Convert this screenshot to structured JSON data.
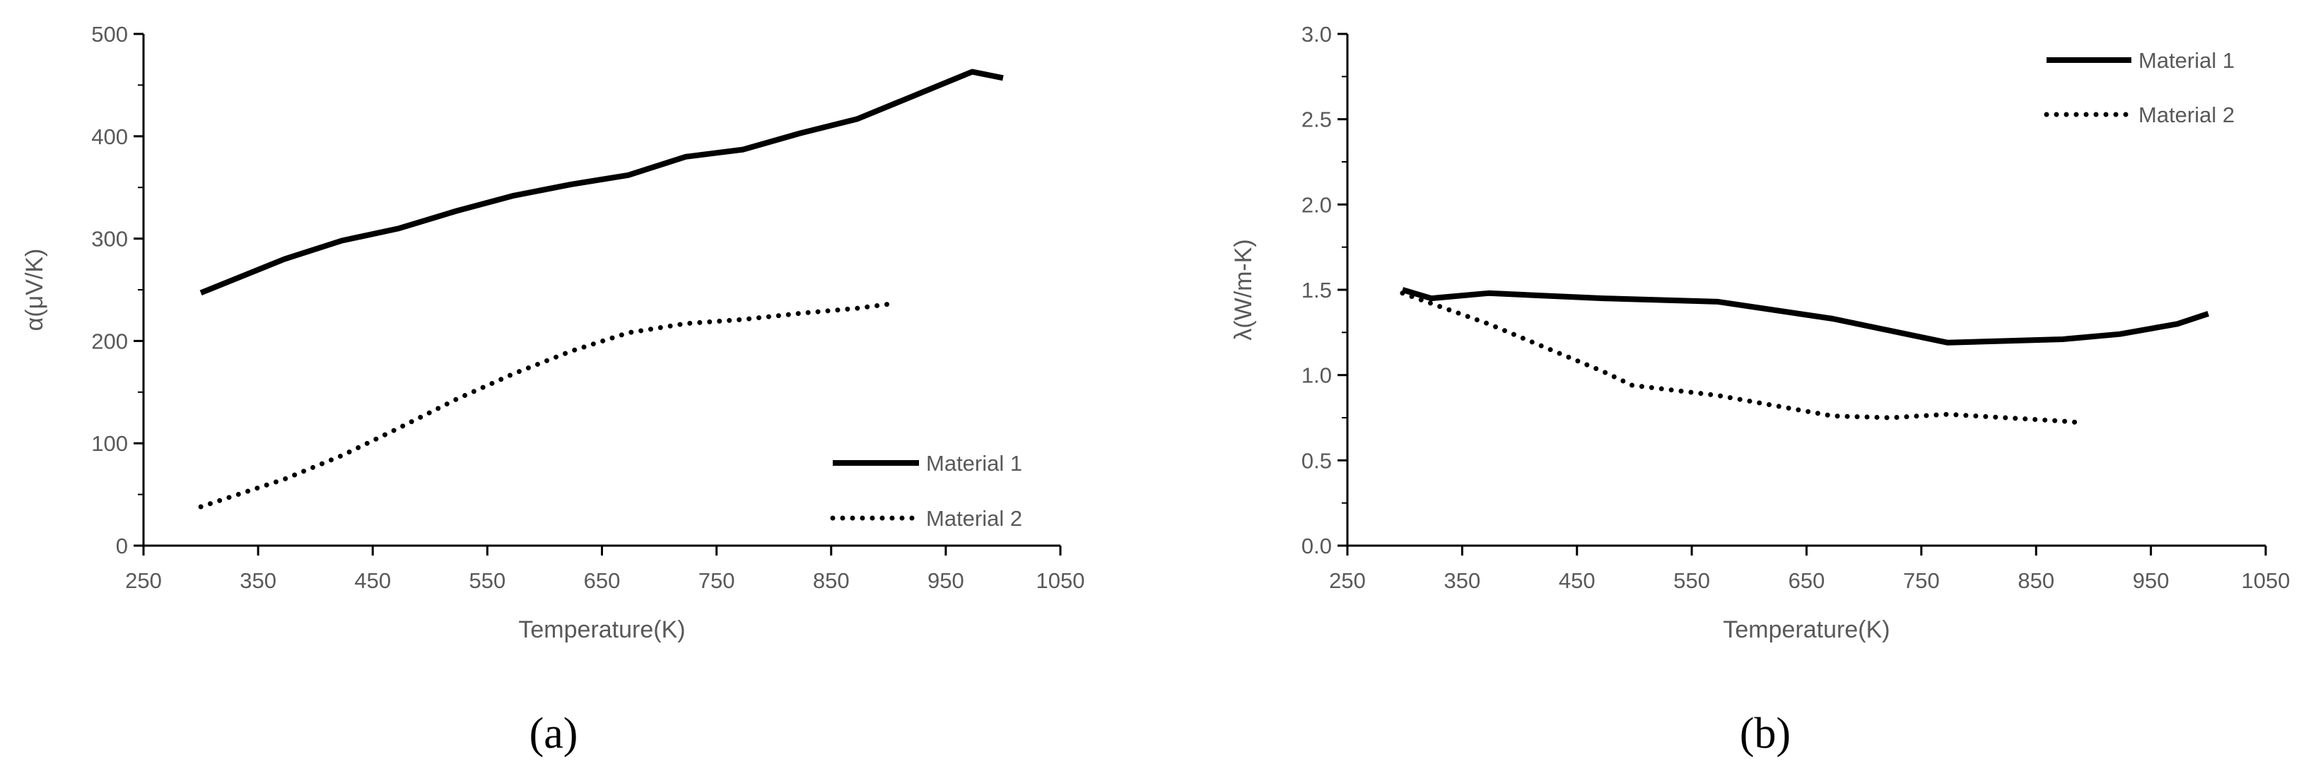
{
  "chart_data": [
    {
      "type": "line",
      "caption": "(a)",
      "xlabel": "Temperature(K)",
      "ylabel": "α(μV/K)",
      "xlim": [
        250,
        1050
      ],
      "ylim": [
        0,
        500
      ],
      "xticks": [
        250,
        350,
        450,
        550,
        650,
        750,
        850,
        950,
        1050
      ],
      "yticks": [
        0,
        100,
        200,
        300,
        400,
        500
      ],
      "ytick_labels": [
        "0",
        "100",
        "200",
        "300",
        "400",
        "500"
      ],
      "grid": false,
      "legend_position": "bottom-right",
      "series": [
        {
          "name": "Material 1",
          "style": "solid",
          "x": [
            300,
            373,
            423,
            473,
            523,
            573,
            623,
            673,
            723,
            773,
            823,
            873,
            923,
            973,
            1000
          ],
          "y": [
            247,
            280,
            298,
            310,
            327,
            342,
            353,
            362,
            380,
            387,
            403,
            417,
            440,
            463,
            457
          ]
        },
        {
          "name": "Material 2",
          "style": "dotted",
          "x": [
            300,
            373,
            423,
            473,
            523,
            573,
            623,
            673,
            723,
            773,
            823,
            873,
            900
          ],
          "y": [
            38,
            65,
            88,
            115,
            143,
            168,
            190,
            208,
            217,
            221,
            227,
            232,
            236
          ]
        }
      ]
    },
    {
      "type": "line",
      "caption": "(b)",
      "xlabel": "Temperature(K)",
      "ylabel": "λ(W/m-K)",
      "xlim": [
        250,
        1050
      ],
      "ylim": [
        0,
        3
      ],
      "xticks": [
        250,
        350,
        450,
        550,
        650,
        750,
        850,
        950,
        1050
      ],
      "yticks": [
        0,
        0.5,
        1,
        1.5,
        2,
        2.5,
        3
      ],
      "ytick_labels": [
        "0.0",
        "0.5",
        "1.0",
        "1.5",
        "2.0",
        "2.5",
        "3.0"
      ],
      "grid": false,
      "legend_position": "top-right",
      "series": [
        {
          "name": "Material 1",
          "style": "solid",
          "x": [
            298,
            323,
            373,
            473,
            573,
            673,
            773,
            873,
            923,
            973,
            1000
          ],
          "y": [
            1.5,
            1.45,
            1.48,
            1.45,
            1.43,
            1.33,
            1.19,
            1.21,
            1.24,
            1.3,
            1.36
          ]
        },
        {
          "name": "Material 2",
          "style": "dotted",
          "x": [
            298,
            373,
            423,
            473,
            498,
            573,
            623,
            673,
            723,
            773,
            823,
            873,
            890
          ],
          "y": [
            1.48,
            1.3,
            1.16,
            1.02,
            0.94,
            0.88,
            0.82,
            0.76,
            0.75,
            0.77,
            0.75,
            0.73,
            0.72
          ]
        }
      ]
    }
  ]
}
